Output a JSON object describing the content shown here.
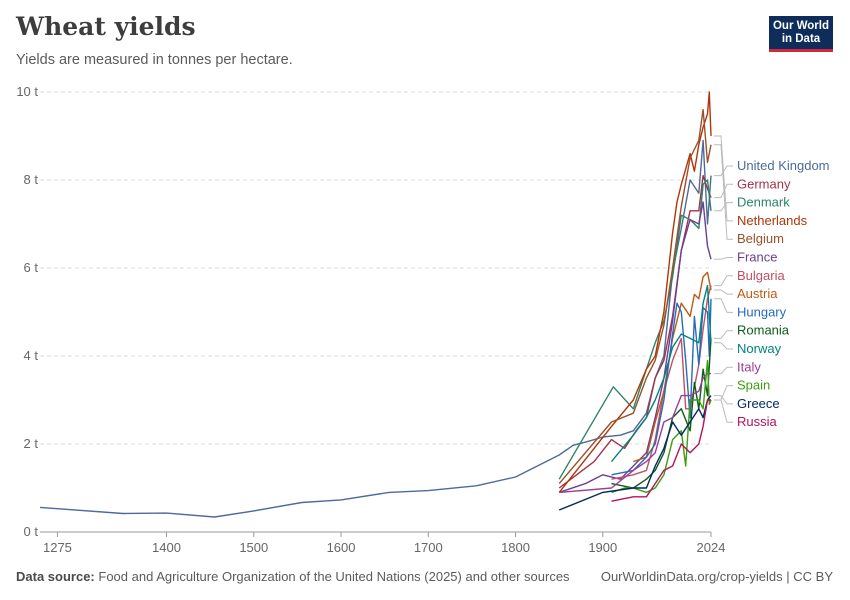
{
  "header": {
    "title": "Wheat yields",
    "subtitle": "Yields are measured in tonnes per hectare.",
    "logo_line1": "Our World",
    "logo_line2": "in Data"
  },
  "footer": {
    "source_label": "Data source:",
    "source_text": "Food and Agriculture Organization of the United Nations (2025) and other sources",
    "url": "OurWorldinData.org/crop-yields | CC BY"
  },
  "colors": {
    "grid": "#dddddd",
    "axis_text": "#666666",
    "connector": "#bbbbbb"
  },
  "chart_data": {
    "type": "line",
    "title": "Wheat yields",
    "subtitle": "Yields are measured in tonnes per hectare.",
    "xlabel": "",
    "ylabel": "",
    "x_ticks": [
      1275,
      1400,
      1500,
      1600,
      1700,
      1800,
      1900,
      2024
    ],
    "x_tick_labels": [
      "1275",
      "1400",
      "1500",
      "1600",
      "1700",
      "1800",
      "1900",
      "2024"
    ],
    "y_ticks": [
      0,
      2,
      4,
      6,
      8,
      10
    ],
    "y_tick_labels": [
      "0 t",
      "2 t",
      "4 t",
      "6 t",
      "8 t",
      "10 t"
    ],
    "xlim": [
      1275,
      2024
    ],
    "ylim": [
      0,
      10
    ],
    "grid": "horizontal dashed",
    "legend": "right, end-of-line labels",
    "series": [
      {
        "name": "United Kingdom",
        "color": "#4c6a9c",
        "points": [
          [
            1255,
            0.56
          ],
          [
            1275,
            0.53
          ],
          [
            1350,
            0.42
          ],
          [
            1400,
            0.43
          ],
          [
            1455,
            0.34
          ],
          [
            1500,
            0.48
          ],
          [
            1555,
            0.67
          ],
          [
            1600,
            0.73
          ],
          [
            1655,
            0.9
          ],
          [
            1700,
            0.94
          ],
          [
            1755,
            1.05
          ],
          [
            1800,
            1.25
          ],
          [
            1850,
            1.75
          ],
          [
            1866,
            1.97
          ],
          [
            1885,
            2.07
          ],
          [
            1900,
            2.16
          ],
          [
            1920,
            2.2
          ],
          [
            1935,
            2.3
          ],
          [
            1950,
            2.7
          ],
          [
            1960,
            3.5
          ],
          [
            1970,
            4.0
          ],
          [
            1980,
            5.9
          ],
          [
            1990,
            6.9
          ],
          [
            2000,
            8.0
          ],
          [
            2010,
            7.7
          ],
          [
            2015,
            8.9
          ],
          [
            2020,
            7.0
          ],
          [
            2024,
            8.1
          ]
        ]
      },
      {
        "name": "Germany",
        "color": "#a2334b",
        "points": [
          [
            1850,
            1.0
          ],
          [
            1870,
            1.3
          ],
          [
            1890,
            1.6
          ],
          [
            1910,
            2.1
          ],
          [
            1925,
            1.9
          ],
          [
            1938,
            2.3
          ],
          [
            1950,
            2.6
          ],
          [
            1960,
            3.5
          ],
          [
            1970,
            3.9
          ],
          [
            1980,
            4.9
          ],
          [
            1990,
            6.4
          ],
          [
            2000,
            7.3
          ],
          [
            2010,
            7.3
          ],
          [
            2015,
            8.1
          ],
          [
            2020,
            7.8
          ],
          [
            2024,
            7.6
          ]
        ]
      },
      {
        "name": "Denmark",
        "color": "#2c8465",
        "points": [
          [
            1850,
            1.2
          ],
          [
            1912,
            3.3
          ],
          [
            1935,
            2.8
          ],
          [
            1950,
            3.7
          ],
          [
            1960,
            4.3
          ],
          [
            1970,
            4.8
          ],
          [
            1980,
            5.8
          ],
          [
            1990,
            7.2
          ],
          [
            2000,
            7.1
          ],
          [
            2010,
            6.9
          ],
          [
            2015,
            7.9
          ],
          [
            2020,
            8.0
          ],
          [
            2024,
            7.3
          ]
        ]
      },
      {
        "name": "Netherlands",
        "color": "#b13507",
        "points": [
          [
            1850,
            0.9
          ],
          [
            1910,
            2.4
          ],
          [
            1935,
            3.0
          ],
          [
            1950,
            3.7
          ],
          [
            1960,
            4.0
          ],
          [
            1970,
            5.0
          ],
          [
            1980,
            6.8
          ],
          [
            1985,
            7.5
          ],
          [
            1990,
            7.9
          ],
          [
            2000,
            8.6
          ],
          [
            2005,
            8.2
          ],
          [
            2010,
            8.8
          ],
          [
            2015,
            9.2
          ],
          [
            2020,
            9.5
          ],
          [
            2022,
            10.0
          ],
          [
            2024,
            9.0
          ]
        ]
      },
      {
        "name": "Belgium",
        "color": "#9a5129",
        "points": [
          [
            1850,
            1.1
          ],
          [
            1910,
            2.5
          ],
          [
            1935,
            2.7
          ],
          [
            1950,
            3.5
          ],
          [
            1960,
            3.9
          ],
          [
            1970,
            4.7
          ],
          [
            1980,
            6.0
          ],
          [
            1990,
            7.4
          ],
          [
            2000,
            8.5
          ],
          [
            2010,
            8.9
          ],
          [
            2015,
            9.6
          ],
          [
            2020,
            8.4
          ],
          [
            2024,
            8.8
          ]
        ]
      },
      {
        "name": "France",
        "color": "#6d3e91",
        "points": [
          [
            1850,
            0.9
          ],
          [
            1880,
            1.1
          ],
          [
            1900,
            1.3
          ],
          [
            1920,
            1.2
          ],
          [
            1935,
            1.5
          ],
          [
            1950,
            1.8
          ],
          [
            1960,
            2.6
          ],
          [
            1970,
            3.5
          ],
          [
            1980,
            4.8
          ],
          [
            1990,
            6.4
          ],
          [
            2000,
            7.1
          ],
          [
            2010,
            7.0
          ],
          [
            2015,
            7.5
          ],
          [
            2020,
            6.5
          ],
          [
            2024,
            6.2
          ]
        ]
      },
      {
        "name": "Bulgaria",
        "color": "#c15065",
        "points": [
          [
            1910,
            1.2
          ],
          [
            1935,
            1.3
          ],
          [
            1950,
            1.4
          ],
          [
            1960,
            2.1
          ],
          [
            1970,
            3.2
          ],
          [
            1980,
            3.9
          ],
          [
            1990,
            4.4
          ],
          [
            1995,
            2.8
          ],
          [
            2000,
            2.8
          ],
          [
            2010,
            3.8
          ],
          [
            2015,
            4.6
          ],
          [
            2020,
            5.3
          ],
          [
            2024,
            5.6
          ]
        ]
      },
      {
        "name": "Austria",
        "color": "#be5915",
        "points": [
          [
            1935,
            1.6
          ],
          [
            1950,
            1.7
          ],
          [
            1960,
            2.5
          ],
          [
            1970,
            3.2
          ],
          [
            1980,
            4.4
          ],
          [
            1990,
            5.2
          ],
          [
            2000,
            4.9
          ],
          [
            2005,
            5.4
          ],
          [
            2010,
            5.3
          ],
          [
            2015,
            5.8
          ],
          [
            2020,
            5.9
          ],
          [
            2024,
            5.5
          ]
        ]
      },
      {
        "name": "Hungary",
        "color": "#286bbb",
        "points": [
          [
            1910,
            1.3
          ],
          [
            1935,
            1.4
          ],
          [
            1950,
            1.7
          ],
          [
            1960,
            2.0
          ],
          [
            1970,
            3.0
          ],
          [
            1980,
            4.5
          ],
          [
            1985,
            5.2
          ],
          [
            1990,
            5.0
          ],
          [
            1995,
            3.9
          ],
          [
            2000,
            2.6
          ],
          [
            2005,
            4.9
          ],
          [
            2010,
            3.8
          ],
          [
            2015,
            5.1
          ],
          [
            2020,
            5.0
          ],
          [
            2022,
            4.0
          ],
          [
            2024,
            5.3
          ]
        ]
      },
      {
        "name": "Romania",
        "color": "#0c5b1f",
        "points": [
          [
            1910,
            1.1
          ],
          [
            1935,
            1.0
          ],
          [
            1950,
            1.2
          ],
          [
            1960,
            1.4
          ],
          [
            1970,
            1.8
          ],
          [
            1980,
            2.6
          ],
          [
            1990,
            2.8
          ],
          [
            2000,
            2.3
          ],
          [
            2005,
            3.4
          ],
          [
            2010,
            2.8
          ],
          [
            2015,
            3.7
          ],
          [
            2020,
            3.1
          ],
          [
            2024,
            4.4
          ]
        ]
      },
      {
        "name": "Norway",
        "color": "#00847e",
        "points": [
          [
            1910,
            1.6
          ],
          [
            1935,
            2.2
          ],
          [
            1950,
            2.6
          ],
          [
            1960,
            3.0
          ],
          [
            1970,
            3.5
          ],
          [
            1980,
            4.2
          ],
          [
            1990,
            4.5
          ],
          [
            2000,
            4.4
          ],
          [
            2010,
            4.3
          ],
          [
            2015,
            5.2
          ],
          [
            2020,
            5.6
          ],
          [
            2024,
            4.3
          ]
        ]
      },
      {
        "name": "Italy",
        "color": "#9a3e98",
        "points": [
          [
            1850,
            0.9
          ],
          [
            1910,
            1.0
          ],
          [
            1935,
            1.4
          ],
          [
            1950,
            1.6
          ],
          [
            1960,
            1.8
          ],
          [
            1970,
            2.5
          ],
          [
            1980,
            2.6
          ],
          [
            1990,
            3.1
          ],
          [
            2000,
            3.1
          ],
          [
            2010,
            3.2
          ],
          [
            2015,
            3.5
          ],
          [
            2020,
            3.6
          ],
          [
            2024,
            3.6
          ]
        ]
      },
      {
        "name": "Spain",
        "color": "#3e9d11",
        "points": [
          [
            1910,
            0.9
          ],
          [
            1925,
            1.0
          ],
          [
            1935,
            1.0
          ],
          [
            1950,
            0.9
          ],
          [
            1960,
            1.0
          ],
          [
            1970,
            1.3
          ],
          [
            1980,
            2.1
          ],
          [
            1990,
            2.3
          ],
          [
            1995,
            1.5
          ],
          [
            2000,
            3.0
          ],
          [
            2010,
            3.0
          ],
          [
            2015,
            2.8
          ],
          [
            2020,
            3.9
          ],
          [
            2022,
            2.9
          ],
          [
            2024,
            3.0
          ]
        ]
      },
      {
        "name": "Greece",
        "color": "#00295b",
        "points": [
          [
            1850,
            0.5
          ],
          [
            1900,
            0.9
          ],
          [
            1935,
            1.0
          ],
          [
            1950,
            1.0
          ],
          [
            1960,
            1.5
          ],
          [
            1970,
            1.9
          ],
          [
            1980,
            2.5
          ],
          [
            1990,
            2.2
          ],
          [
            2000,
            2.5
          ],
          [
            2010,
            2.8
          ],
          [
            2015,
            2.6
          ],
          [
            2020,
            3.0
          ],
          [
            2024,
            3.1
          ]
        ]
      },
      {
        "name": "Russia",
        "color": "#b1135c",
        "points": [
          [
            1910,
            0.7
          ],
          [
            1935,
            0.8
          ],
          [
            1950,
            0.8
          ],
          [
            1960,
            1.1
          ],
          [
            1970,
            1.4
          ],
          [
            1980,
            1.5
          ],
          [
            1990,
            2.0
          ],
          [
            2000,
            1.8
          ],
          [
            2010,
            2.0
          ],
          [
            2015,
            2.4
          ],
          [
            2020,
            3.0
          ],
          [
            2024,
            3.0
          ]
        ]
      }
    ]
  }
}
